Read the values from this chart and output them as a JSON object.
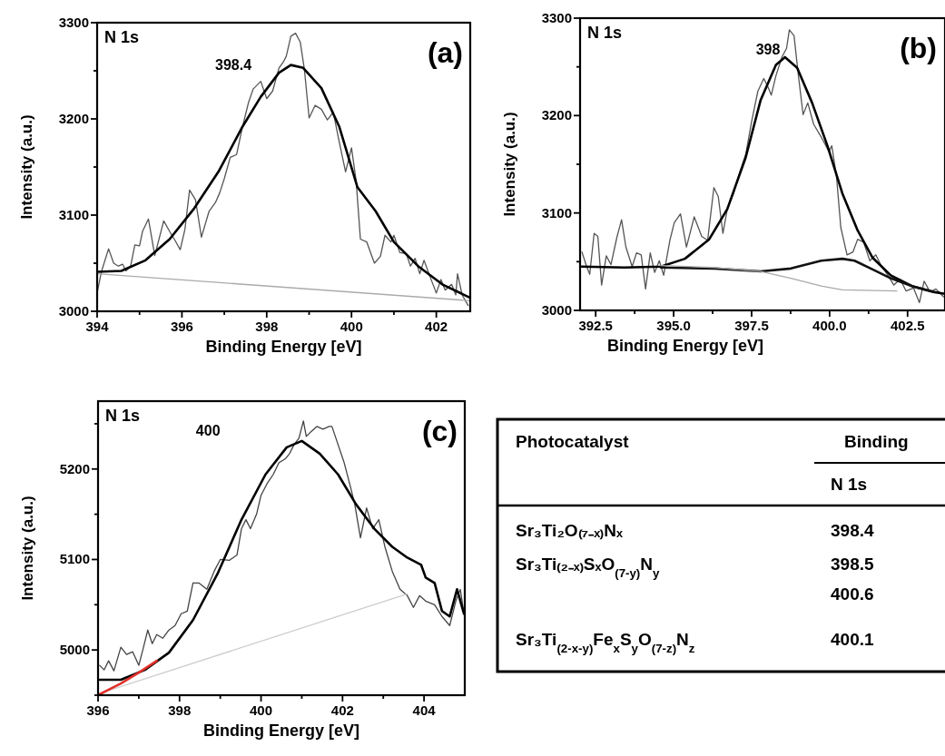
{
  "chart_data": [
    {
      "type": "line",
      "xlabel": "Binding Energy [eV]",
      "ylabel": "Intensity (a.u.)",
      "xlim": [
        394,
        402.8
      ],
      "ylim": [
        3000,
        3300
      ],
      "xticks": [
        394,
        {
          "value": 395,
          "label": null
        },
        396,
        {
          "value": 397,
          "label": null
        },
        398,
        {
          "value": 399,
          "label": null
        },
        400,
        {
          "value": 401,
          "label": null
        },
        402
      ],
      "yticks": [
        3000,
        {
          "value": 3050,
          "label": null
        },
        3100,
        {
          "value": 3150,
          "label": null
        },
        3200,
        {
          "value": 3250,
          "label": null
        },
        3300
      ],
      "annotations": [
        "N 1s",
        "(a)",
        "398.4"
      ],
      "series": [
        {
          "color": "#555555",
          "x": [
            394,
            394.1,
            394.27,
            394.39,
            394.5,
            394.6,
            394.68,
            394.79,
            394.89,
            395,
            395.07,
            395.21,
            395.36,
            395.57,
            395.71,
            395.82,
            395.96,
            396.07,
            396.18,
            396.32,
            396.46,
            396.64,
            396.79,
            396.89,
            397,
            397.14,
            397.29,
            397.43,
            397.57,
            397.68,
            397.86,
            398,
            398.14,
            398.29,
            398.39,
            398.46,
            398.57,
            398.68,
            398.79,
            398.89,
            399,
            399.14,
            399.29,
            399.43,
            399.57,
            399.71,
            399.86,
            400,
            400.11,
            400.21,
            400.36,
            400.54,
            400.68,
            400.79,
            400.93,
            401,
            401.14,
            401.29,
            401.39,
            401.5,
            401.61,
            401.71,
            401.86,
            402,
            402.11,
            402.21,
            402.36,
            402.46,
            402.5,
            402.61,
            402.75
          ],
          "values": [
            3019,
            3041,
            3065,
            3050,
            3047,
            3049,
            3042,
            3047,
            3069,
            3068,
            3083,
            3096,
            3058,
            3094,
            3083,
            3075,
            3064,
            3085,
            3126,
            3116,
            3077,
            3104,
            3113,
            3123,
            3138,
            3160,
            3163,
            3192,
            3217,
            3231,
            3239,
            3221,
            3229,
            3253,
            3259,
            3265,
            3286,
            3289,
            3280,
            3251,
            3201,
            3214,
            3210,
            3199,
            3207,
            3176,
            3145,
            3170,
            3135,
            3075,
            3072,
            3050,
            3057,
            3079,
            3072,
            3079,
            3061,
            3060,
            3047,
            3055,
            3039,
            3053,
            3035,
            3019,
            3033,
            3022,
            3028,
            3017,
            3039,
            3017,
            3006
          ]
        },
        {
          "color": "#000000",
          "x": [
            394,
            394.57,
            395.14,
            395.71,
            396.29,
            396.86,
            397.43,
            397.86,
            398.29,
            398.57,
            398.86,
            399.29,
            399.71,
            400.14,
            400.57,
            401,
            401.57,
            402.14,
            402.8
          ],
          "values": [
            3041,
            3042,
            3053,
            3075,
            3107,
            3145,
            3192,
            3223,
            3248,
            3256,
            3253,
            3232,
            3192,
            3129,
            3104,
            3072,
            3047,
            3028,
            3014
          ]
        },
        {
          "color": "#aaaaaa",
          "x": [
            394,
            402.8
          ],
          "values": [
            3039,
            3011
          ]
        }
      ]
    },
    {
      "type": "line",
      "xlabel": "Binding Energy [eV]",
      "ylabel": "Intensity (a.u.)",
      "xlim": [
        392,
        403.7
      ],
      "ylim": [
        3000,
        3300
      ],
      "xticks": [
        392.5,
        {
          "value": 393.75,
          "label": null
        },
        "395.0",
        {
          "value": 396.25,
          "label": null
        },
        397.5,
        {
          "value": 398.75,
          "label": null
        },
        "400.0",
        {
          "value": 401.25,
          "label": null
        },
        402.5
      ],
      "yticks": [
        3000,
        {
          "value": 3050,
          "label": null
        },
        3100,
        {
          "value": 3150,
          "label": null
        },
        3200,
        {
          "value": 3250,
          "label": null
        },
        3300
      ],
      "annotations": [
        "N 1s",
        "(b)",
        "398"
      ],
      "series": [
        {
          "color": "#555555",
          "x": [
            392.06,
            392.21,
            392.31,
            392.45,
            392.57,
            392.69,
            392.84,
            392.99,
            393.18,
            393.33,
            393.47,
            393.67,
            393.81,
            393.96,
            394.1,
            394.25,
            394.39,
            394.54,
            394.68,
            394.88,
            395.02,
            395.22,
            395.41,
            395.66,
            395.9,
            396.09,
            396.29,
            396.43,
            396.58,
            396.72,
            396.92,
            397.11,
            397.31,
            397.5,
            397.7,
            397.89,
            398.03,
            398.13,
            398.28,
            398.47,
            398.62,
            398.71,
            398.86,
            399,
            399.15,
            399.3,
            399.49,
            399.73,
            399.98,
            400.07,
            400.22,
            400.36,
            400.56,
            400.75,
            400.9,
            401.09,
            401.29,
            401.48,
            401.67,
            401.87,
            402.06,
            402.26,
            402.45,
            402.69,
            402.88,
            403.03,
            403.22,
            403.41,
            403.65
          ],
          "values": [
            3060,
            3045,
            3037,
            3079,
            3076,
            3026,
            3056,
            3047,
            3075,
            3093,
            3065,
            3045,
            3059,
            3057,
            3022,
            3059,
            3039,
            3051,
            3036,
            3072,
            3090,
            3099,
            3065,
            3096,
            3076,
            3072,
            3126,
            3117,
            3079,
            3104,
            3120,
            3141,
            3160,
            3194,
            3225,
            3238,
            3229,
            3221,
            3241,
            3260,
            3269,
            3288,
            3282,
            3241,
            3201,
            3213,
            3191,
            3178,
            3163,
            3169,
            3138,
            3085,
            3057,
            3060,
            3073,
            3070,
            3051,
            3057,
            3045,
            3036,
            3026,
            3032,
            3020,
            3023,
            3008,
            3030,
            3019,
            3022,
            3014
          ]
        },
        {
          "color": "#000000",
          "x": [
            392.06,
            393.42,
            394.59,
            395.36,
            396.14,
            396.72,
            397.31,
            397.79,
            398.28,
            398.57,
            398.96,
            399.44,
            399.93,
            400.41,
            400.9,
            401.38,
            401.96,
            402.64,
            403.32,
            403.7
          ],
          "values": [
            3045,
            3044,
            3045,
            3053,
            3073,
            3104,
            3157,
            3216,
            3252,
            3260,
            3249,
            3213,
            3169,
            3120,
            3082,
            3054,
            3036,
            3025,
            3019,
            3017
          ]
        },
        {
          "color": "#111111",
          "x": [
            394.59,
            396.33,
            397.79,
            398.76,
            399.73,
            400.41,
            400.8,
            401.38,
            401.96,
            402.64,
            403.32
          ],
          "values": [
            3044,
            3043,
            3040,
            3043,
            3051,
            3053,
            3051,
            3042,
            3033,
            3025,
            3019
          ]
        },
        {
          "color": "#aaaaaa",
          "x": [
            394.59,
            396.33,
            397.79,
            398.76,
            399.73,
            400.41,
            402.16
          ],
          "values": [
            3046,
            3044,
            3040,
            3033,
            3025,
            3021,
            3020
          ]
        }
      ]
    },
    {
      "type": "line",
      "xlabel": "Binding Energy [eV]",
      "ylabel": "Intensity (a.u.)",
      "xlim": [
        396,
        405
      ],
      "ylim": [
        4950,
        5275
      ],
      "xticks": [
        396,
        {
          "value": 397,
          "label": null
        },
        398,
        {
          "value": 399,
          "label": null
        },
        400,
        {
          "value": 401,
          "label": null
        },
        402,
        {
          "value": 403,
          "label": null
        },
        404
      ],
      "yticks": [
        {
          "value": 4950,
          "label": null
        },
        5000,
        {
          "value": 5050,
          "label": null
        },
        5100,
        {
          "value": 5150,
          "label": null
        },
        5200,
        {
          "value": 5250,
          "label": null
        }
      ],
      "annotations": [
        "N 1s",
        "(c)",
        "400"
      ],
      "series": [
        {
          "color": "#444444",
          "x": [
            396.04,
            396.15,
            396.26,
            396.39,
            396.56,
            396.7,
            396.85,
            397,
            397.11,
            397.22,
            397.33,
            397.44,
            397.59,
            397.74,
            397.89,
            398.04,
            398.19,
            398.33,
            398.48,
            398.67,
            398.85,
            399,
            399.22,
            399.41,
            399.52,
            399.63,
            399.74,
            399.89,
            400,
            400.15,
            400.3,
            400.44,
            400.59,
            400.7,
            400.81,
            400.93,
            401.04,
            401.11,
            401.22,
            401.37,
            401.52,
            401.67,
            401.74,
            401.89,
            402.04,
            402.19,
            402.3,
            402.44,
            402.59,
            402.74,
            402.89,
            403.04,
            403.22,
            403.41,
            403.59,
            403.74,
            403.89,
            404.04,
            404.26,
            404.44,
            404.63,
            404.78,
            404.89,
            404.98
          ],
          "values": [
            4983,
            4978,
            4988,
            4977,
            5003,
            4995,
            4998,
            4983,
            5002,
            5022,
            5007,
            5017,
            5013,
            5022,
            5027,
            5040,
            5043,
            5074,
            5074,
            5067,
            5087,
            5100,
            5099,
            5105,
            5134,
            5144,
            5134,
            5150,
            5171,
            5184,
            5194,
            5207,
            5211,
            5217,
            5227,
            5234,
            5253,
            5236,
            5241,
            5247,
            5244,
            5247,
            5247,
            5227,
            5207,
            5181,
            5161,
            5124,
            5157,
            5134,
            5144,
            5114,
            5087,
            5067,
            5060,
            5047,
            5060,
            5054,
            5050,
            5037,
            5027,
            5054,
            5067,
            5040
          ]
        },
        {
          "color": "#000000",
          "x": [
            396.04,
            396.56,
            397.15,
            397.74,
            398.33,
            398.93,
            399.52,
            400.11,
            400.63,
            401,
            401.44,
            401.89,
            402.33,
            402.78,
            403.22,
            403.59,
            403.93,
            404.04,
            404.26,
            404.44,
            404.63,
            404.81,
            404.98
          ],
          "values": [
            4967,
            4967,
            4978,
            4997,
            5033,
            5084,
            5144,
            5194,
            5224,
            5231,
            5217,
            5194,
            5161,
            5134,
            5114,
            5102,
            5094,
            5080,
            5074,
            5043,
            5037,
            5067,
            5040
          ]
        },
        {
          "color": "#cccccc",
          "x": [
            396.04,
            403.59
          ],
          "values": [
            4952,
            5062
          ]
        },
        {
          "color": "#e0302a",
          "x": [
            396.04,
            396.56,
            397,
            397.44
          ],
          "values": [
            4951,
            4963,
            4975,
            4988
          ]
        }
      ]
    },
    {
      "type": "other",
      "annotations": [
        "Photocatalyst",
        "Binding",
        "N 1s"
      ],
      "categories": [
        "Sr₃Ti₂O₍₇₋ₓ₎Nₓ",
        "Sr₃Ti₍₂₋ₓ₎SₓO$_{(7-y)}$N$_{y}$",
        "Sr₃Ti$_{(2-x-y)}$Fe$_{x}$S$_{y}$O$_{(7-z)}$N$_{z}$"
      ],
      "value_labels": [
        "398.4",
        "398.5\n400.6",
        "400.1"
      ]
    }
  ]
}
